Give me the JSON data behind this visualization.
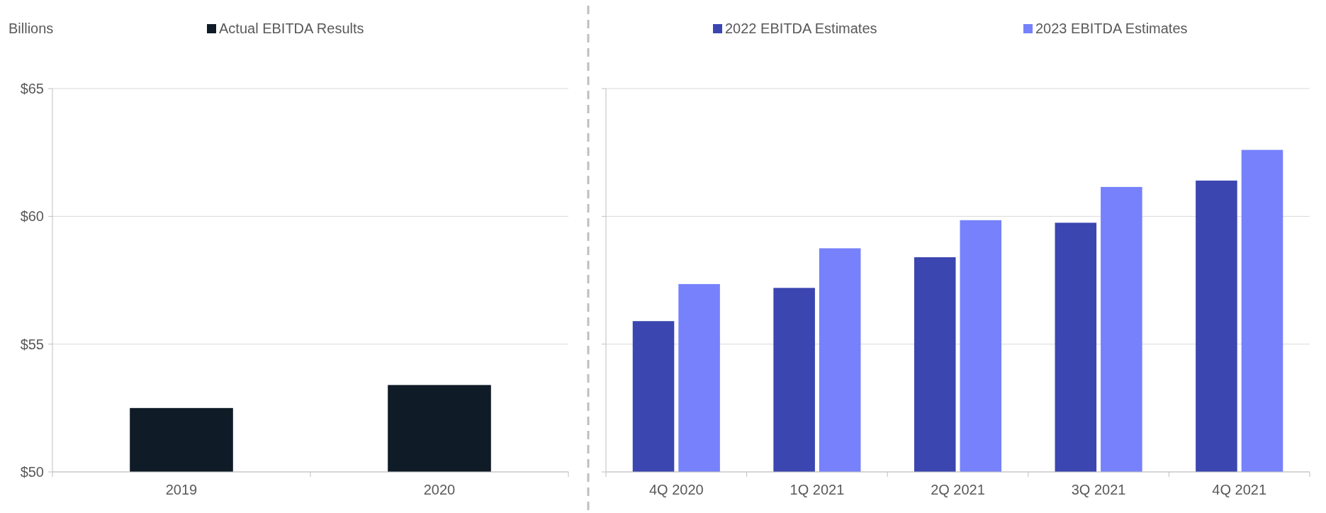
{
  "chart_data": [
    {
      "type": "bar",
      "ylabel": "Billions",
      "categories": [
        "2019",
        "2020"
      ],
      "series": [
        {
          "name": "Actual EBITDA Results",
          "color": "#0f1b27",
          "values": [
            52.5,
            53.4
          ]
        }
      ],
      "ylim": [
        50,
        65
      ],
      "yticks": [
        {
          "value": 50,
          "label": "$50"
        },
        {
          "value": 55,
          "label": "$55"
        },
        {
          "value": 60,
          "label": "$60"
        },
        {
          "value": 65,
          "label": "$65"
        }
      ],
      "grid": "y",
      "legend": "top"
    },
    {
      "type": "bar",
      "categories": [
        "4Q 2020",
        "1Q 2021",
        "2Q 2021",
        "3Q 2021",
        "4Q 2021"
      ],
      "series": [
        {
          "name": "2022 EBITDA Estimates",
          "color": "#3b46b0",
          "values": [
            55.9,
            57.2,
            58.4,
            59.75,
            61.4
          ]
        },
        {
          "name": "2023 EBITDA Estimates",
          "color": "#7681fb",
          "values": [
            57.35,
            58.75,
            59.85,
            61.15,
            62.6
          ]
        }
      ],
      "ylim": [
        50,
        65
      ],
      "yticks": [
        {
          "value": 50,
          "label": null
        },
        {
          "value": 55,
          "label": null
        },
        {
          "value": 60,
          "label": null
        },
        {
          "value": 65,
          "label": null
        }
      ],
      "grid": "y",
      "legend": "top",
      "tick_labels": "x"
    }
  ]
}
